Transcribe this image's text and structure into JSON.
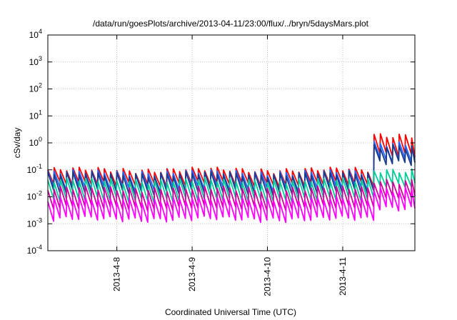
{
  "chart_data": {
    "type": "line",
    "title": "/data/run/goesPlots/archive/2013-04-11/23:00/flux/../bryn/5daysMars.plot",
    "xlabel": "Coordinated Universal Time (UTC)",
    "ylabel": "cSv/day",
    "y_scale": "log",
    "ylim": [
      0.0001,
      10000
    ],
    "y_ticks": [
      {
        "base": "10",
        "exp": "-4",
        "value": 0.0001
      },
      {
        "base": "10",
        "exp": "-3",
        "value": 0.001
      },
      {
        "base": "10",
        "exp": "-2",
        "value": 0.01
      },
      {
        "base": "10",
        "exp": "-1",
        "value": 0.1
      },
      {
        "base": "10",
        "exp": "0",
        "value": 1
      },
      {
        "base": "10",
        "exp": "1",
        "value": 10
      },
      {
        "base": "10",
        "exp": "2",
        "value": 100
      },
      {
        "base": "10",
        "exp": "3",
        "value": 1000
      },
      {
        "base": "10",
        "exp": "4",
        "value": 10000
      }
    ],
    "xlim": [
      "2013-04-07 02:00",
      "2013-04-11 23:00"
    ],
    "x_ticks": [
      {
        "label": "2013-4-8",
        "value": "2013-04-08 00:00"
      },
      {
        "label": "2013-4-9",
        "value": "2013-04-09 00:00"
      },
      {
        "label": "2013-4-10",
        "value": "2013-04-10 00:00"
      },
      {
        "label": "2013-4-11",
        "value": "2013-04-11 00:00"
      }
    ],
    "grid": true,
    "legend": "none",
    "cycle_hours": 2,
    "step_time": "2013-04-11 10:00",
    "series": [
      {
        "color": "#ff0000",
        "before": [
          0.03,
          0.1
        ],
        "after": [
          0.4,
          2.0
        ]
      },
      {
        "color": "#1e64ff",
        "before": [
          0.02,
          0.08
        ],
        "after": [
          0.25,
          1.0
        ]
      },
      {
        "color": "#1a3a8a",
        "before": [
          0.015,
          0.07
        ],
        "after": [
          0.2,
          0.8
        ]
      },
      {
        "color": "#00cc99",
        "before": [
          0.008,
          0.04
        ],
        "after": [
          0.03,
          0.1
        ]
      },
      {
        "color": "#d0009a",
        "before": [
          0.004,
          0.02
        ],
        "after": [
          0.01,
          0.04
        ]
      },
      {
        "color": "#ff00ff",
        "before": [
          0.0015,
          0.008
        ],
        "after": [
          0.004,
          0.02
        ]
      }
    ]
  }
}
